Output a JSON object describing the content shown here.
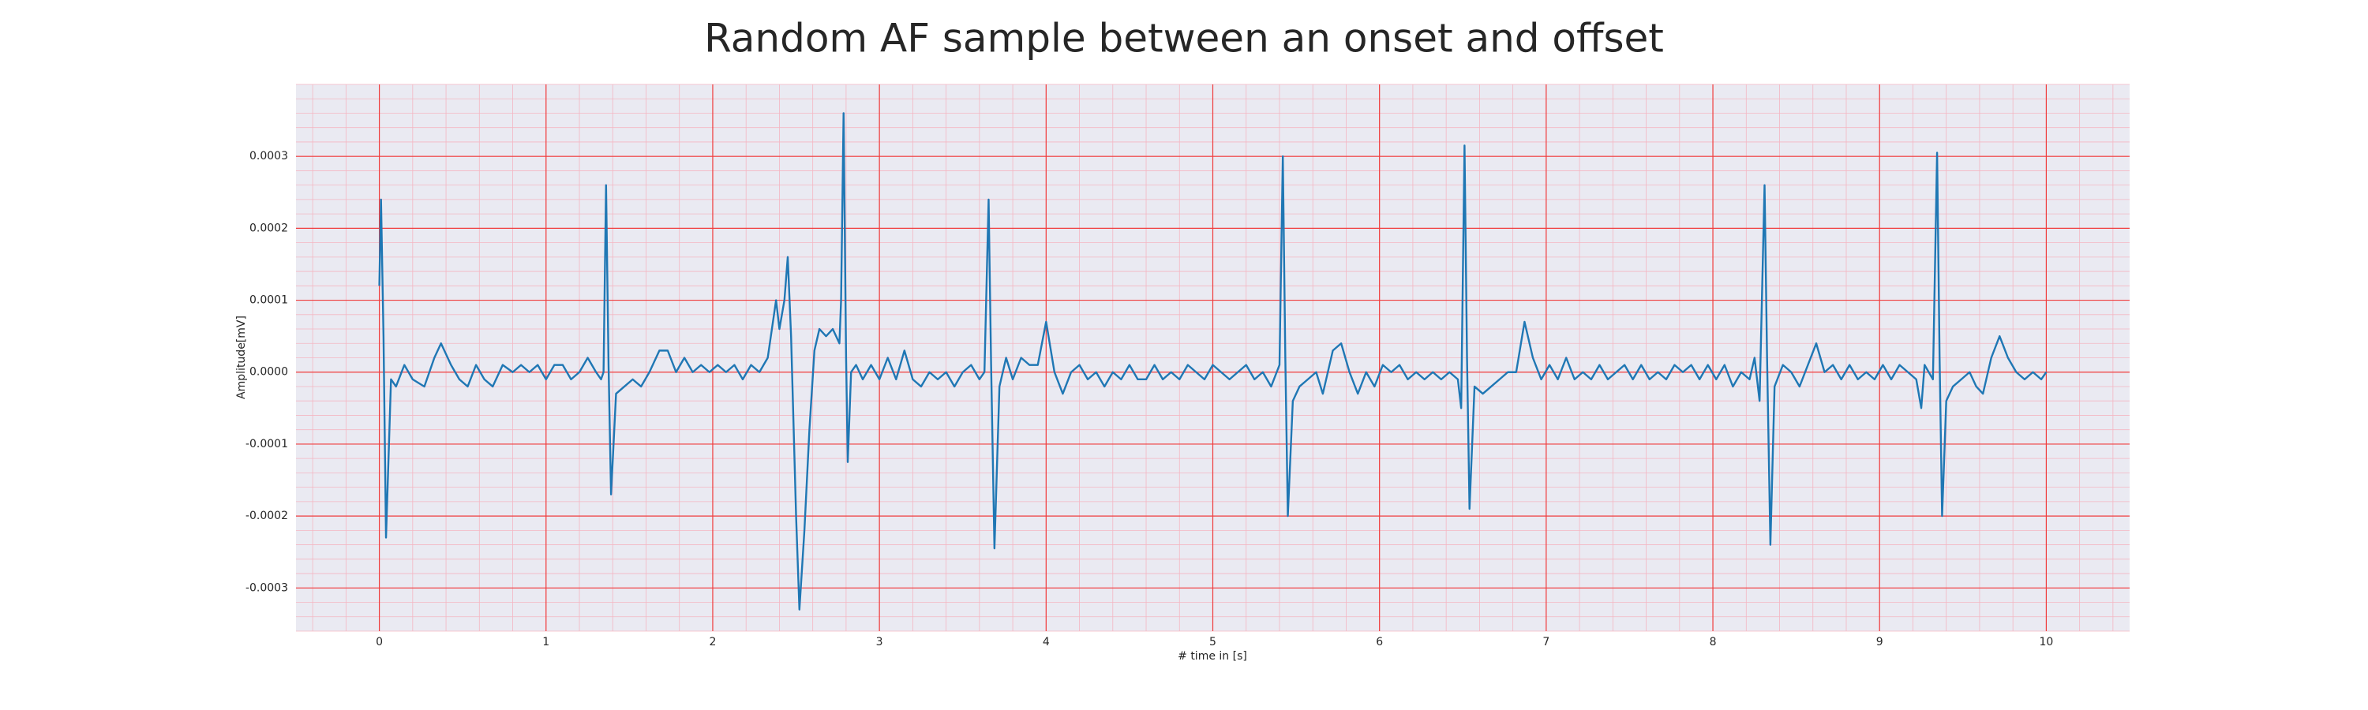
{
  "chart_data": {
    "type": "line",
    "title": "Random AF sample between an onset and offset",
    "xlabel": "# time in [s]",
    "ylabel": "Amplitude[mV]",
    "xlim": [
      -0.5,
      10.5
    ],
    "ylim": [
      -0.00036,
      0.0004
    ],
    "xticks": [
      0,
      1,
      2,
      3,
      4,
      5,
      6,
      7,
      8,
      9,
      10
    ],
    "yticks": [
      -0.0003,
      -0.0002,
      -0.0001,
      {
        "value": 0,
        "label": "0.0000"
      },
      0.0001,
      0.0002,
      0.0003
    ],
    "grid": true,
    "minor_grid": true,
    "x": [
      0,
      0.01,
      0.025,
      0.04,
      0.07,
      0.1,
      0.15,
      0.2,
      0.27,
      0.33,
      0.37,
      0.43,
      0.48,
      0.53,
      0.58,
      0.63,
      0.68,
      0.74,
      0.8,
      0.85,
      0.9,
      0.95,
      1.0,
      1.05,
      1.1,
      1.15,
      1.2,
      1.25,
      1.3,
      1.33,
      1.345,
      1.36,
      1.375,
      1.39,
      1.42,
      1.47,
      1.52,
      1.57,
      1.62,
      1.68,
      1.73,
      1.78,
      1.83,
      1.88,
      1.93,
      1.98,
      2.03,
      2.08,
      2.13,
      2.18,
      2.23,
      2.28,
      2.33,
      2.38,
      2.4,
      2.43,
      2.45,
      2.47,
      2.5,
      2.52,
      2.55,
      2.58,
      2.61,
      2.64,
      2.68,
      2.72,
      2.76,
      2.77,
      2.785,
      2.8,
      2.81,
      2.83,
      2.86,
      2.9,
      2.95,
      3.0,
      3.05,
      3.1,
      3.15,
      3.2,
      3.25,
      3.3,
      3.35,
      3.4,
      3.45,
      3.5,
      3.55,
      3.6,
      3.63,
      3.655,
      3.67,
      3.69,
      3.72,
      3.76,
      3.8,
      3.85,
      3.9,
      3.95,
      4.0,
      4.05,
      4.1,
      4.15,
      4.2,
      4.25,
      4.3,
      4.35,
      4.4,
      4.45,
      4.5,
      4.55,
      4.6,
      4.65,
      4.7,
      4.75,
      4.8,
      4.85,
      4.9,
      4.95,
      5.0,
      5.05,
      5.1,
      5.15,
      5.2,
      5.25,
      5.3,
      5.35,
      5.4,
      5.42,
      5.435,
      5.45,
      5.48,
      5.52,
      5.57,
      5.62,
      5.66,
      5.72,
      5.77,
      5.82,
      5.87,
      5.92,
      5.97,
      6.02,
      6.07,
      6.12,
      6.17,
      6.22,
      6.27,
      6.32,
      6.37,
      6.42,
      6.47,
      6.49,
      6.51,
      6.525,
      6.54,
      6.57,
      6.62,
      6.67,
      6.72,
      6.77,
      6.82,
      6.87,
      6.92,
      6.97,
      7.02,
      7.07,
      7.12,
      7.17,
      7.22,
      7.27,
      7.32,
      7.37,
      7.42,
      7.47,
      7.52,
      7.57,
      7.62,
      7.67,
      7.72,
      7.77,
      7.82,
      7.87,
      7.92,
      7.97,
      8.02,
      8.07,
      8.12,
      8.17,
      8.22,
      8.25,
      8.28,
      8.31,
      8.325,
      8.345,
      8.37,
      8.42,
      8.47,
      8.52,
      8.57,
      8.62,
      8.67,
      8.72,
      8.77,
      8.82,
      8.87,
      8.92,
      8.97,
      9.02,
      9.07,
      9.12,
      9.17,
      9.22,
      9.25,
      9.27,
      9.32,
      9.345,
      9.36,
      9.375,
      9.4,
      9.44,
      9.49,
      9.54,
      9.58,
      9.62,
      9.67,
      9.72,
      9.77,
      9.82,
      9.87,
      9.92,
      9.97,
      10.0
    ],
    "series": [
      {
        "color": "#1f77b4",
        "values": [
          0.00012,
          0.00024,
          5e-05,
          -0.00023,
          -1e-05,
          -2e-05,
          1e-05,
          -1e-05,
          -2e-05,
          2e-05,
          4e-05,
          1e-05,
          -1e-05,
          -2e-05,
          1e-05,
          -1e-05,
          -2e-05,
          1e-05,
          0.0,
          1e-05,
          0.0,
          1e-05,
          -1e-05,
          1e-05,
          1e-05,
          -1e-05,
          0.0,
          2e-05,
          0.0,
          -1e-05,
          0.0,
          0.00026,
          1e-05,
          -0.00017,
          -3e-05,
          -2e-05,
          -1e-05,
          -2e-05,
          0.0,
          3e-05,
          3e-05,
          0.0,
          2e-05,
          0.0,
          1e-05,
          0.0,
          1e-05,
          0.0,
          1e-05,
          -1e-05,
          1e-05,
          0.0,
          2e-05,
          0.0001,
          6e-05,
          0.0001,
          0.00016,
          5e-05,
          -0.0002,
          -0.00033,
          -0.00022,
          -8e-05,
          3e-05,
          6e-05,
          5e-05,
          6e-05,
          4e-05,
          0.0001,
          0.00036,
          2e-05,
          -0.000125,
          0.0,
          1e-05,
          -1e-05,
          1e-05,
          -1e-05,
          2e-05,
          -1e-05,
          3e-05,
          -1e-05,
          -2e-05,
          0.0,
          -1e-05,
          0.0,
          -2e-05,
          0.0,
          1e-05,
          -1e-05,
          0.0,
          0.00024,
          1e-05,
          -0.000245,
          -2e-05,
          2e-05,
          -1e-05,
          2e-05,
          1e-05,
          1e-05,
          7e-05,
          0.0,
          -3e-05,
          0.0,
          1e-05,
          -1e-05,
          0.0,
          -2e-05,
          0.0,
          -1e-05,
          1e-05,
          -1e-05,
          -1e-05,
          1e-05,
          -1e-05,
          0.0,
          -1e-05,
          1e-05,
          0.0,
          -1e-05,
          1e-05,
          0.0,
          -1e-05,
          0.0,
          1e-05,
          -1e-05,
          0.0,
          -2e-05,
          1e-05,
          0.0003,
          2e-05,
          -0.0002,
          -4e-05,
          -2e-05,
          -1e-05,
          0.0,
          -3e-05,
          3e-05,
          4e-05,
          0.0,
          -3e-05,
          0.0,
          -2e-05,
          1e-05,
          0.0,
          1e-05,
          -1e-05,
          0.0,
          -1e-05,
          0.0,
          -1e-05,
          0.0,
          -1e-05,
          -5e-05,
          0.000315,
          2e-05,
          -0.00019,
          -2e-05,
          -3e-05,
          -2e-05,
          -1e-05,
          0.0,
          0.0,
          7e-05,
          2e-05,
          -1e-05,
          1e-05,
          -1e-05,
          2e-05,
          -1e-05,
          0.0,
          -1e-05,
          1e-05,
          -1e-05,
          0.0,
          1e-05,
          -1e-05,
          1e-05,
          -1e-05,
          0.0,
          -1e-05,
          1e-05,
          0.0,
          1e-05,
          -1e-05,
          1e-05,
          -1e-05,
          1e-05,
          -2e-05,
          0.0,
          -1e-05,
          2e-05,
          -4e-05,
          0.00026,
          2e-05,
          -0.00024,
          -2e-05,
          1e-05,
          0.0,
          -2e-05,
          1e-05,
          4e-05,
          0.0,
          1e-05,
          -1e-05,
          1e-05,
          -1e-05,
          0.0,
          -1e-05,
          1e-05,
          -1e-05,
          1e-05,
          0.0,
          -1e-05,
          -5e-05,
          1e-05,
          -1e-05,
          0.000305,
          2e-05,
          -0.0002,
          -4e-05,
          -2e-05,
          -1e-05,
          0.0,
          -2e-05,
          -3e-05,
          2e-05,
          5e-05,
          2e-05,
          0.0,
          -1e-05,
          0.0,
          -1e-05,
          0.0
        ]
      }
    ]
  }
}
